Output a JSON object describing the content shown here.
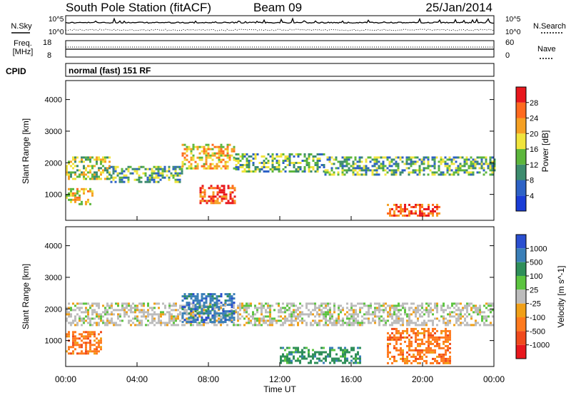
{
  "header": {
    "station": "South Pole Station (fitACF)",
    "beam": "Beam 09",
    "date": "25/Jan/2014"
  },
  "top_panels": {
    "nsky_label": "N.Sky",
    "nsearch_label": "N.Search",
    "noise_top_tick": "10^5",
    "noise_bottom_tick": "10^0",
    "noise_right_top_tick": "10^5",
    "noise_right_bottom_tick": "10^0",
    "freq_label": "Freq.",
    "freq_unit": "[MHz]",
    "freq_ticks": [
      "18",
      "8"
    ],
    "nave_label": "Nave",
    "nave_ticks": [
      "60",
      "0"
    ],
    "cpid_label": "CPID",
    "cpid_text": "normal (fast) 151 RF"
  },
  "chart_data": [
    {
      "type": "heatmap",
      "title": "",
      "ylabel": "Slant Range [km]",
      "xlabel": "",
      "ylim": [
        180,
        4600
      ],
      "yticks": [
        "1000",
        "2000",
        "3000",
        "4000"
      ],
      "colorbar_label": "Power [dB]",
      "colorbar_ticks": [
        "4",
        "8",
        "12",
        "16",
        "20",
        "24",
        "28"
      ],
      "colorbar_colors": [
        "#1a3dd6",
        "#2d62c6",
        "#3d8c6e",
        "#5cb63c",
        "#f0e43c",
        "#f5a023",
        "#ff6a1f",
        "#e8171d"
      ],
      "bands": [
        {
          "x_start": "00:00",
          "x_end": "02:30",
          "range_km": [
            1500,
            2200
          ],
          "level": 16
        },
        {
          "x_start": "02:30",
          "x_end": "06:30",
          "range_km": [
            1400,
            1900
          ],
          "level": 12
        },
        {
          "x_start": "06:30",
          "x_end": "09:30",
          "range_km": [
            1800,
            2600
          ],
          "level": 20
        },
        {
          "x_start": "09:30",
          "x_end": "14:30",
          "range_km": [
            1700,
            2300
          ],
          "level": 12
        },
        {
          "x_start": "14:30",
          "x_end": "24:00",
          "range_km": [
            1600,
            2200
          ],
          "level": 12
        },
        {
          "x_start": "00:00",
          "x_end": "01:30",
          "range_km": [
            700,
            1200
          ],
          "level": 20
        },
        {
          "x_start": "07:30",
          "x_end": "09:30",
          "range_km": [
            700,
            1300
          ],
          "level": 28
        },
        {
          "x_start": "18:00",
          "x_end": "21:00",
          "range_km": [
            300,
            700
          ],
          "level": 28
        }
      ]
    },
    {
      "type": "heatmap",
      "title": "",
      "ylabel": "Slant Range [km]",
      "xlabel": "Time UT",
      "ylim": [
        180,
        4600
      ],
      "yticks": [
        "1000",
        "2000",
        "3000",
        "4000"
      ],
      "xticks": [
        "00:00",
        "04:00",
        "08:00",
        "12:00",
        "16:00",
        "20:00",
        "00:00"
      ],
      "colorbar_label": "Velocity [m s^-1]",
      "colorbar_ticks": [
        "1000",
        "500",
        "100",
        "25",
        "-25",
        "-100",
        "-500",
        "-1000"
      ],
      "colorbar_colors": [
        "#2a4fd0",
        "#3a7fb8",
        "#2f8f5a",
        "#5cc440",
        "#bcbcbc",
        "#f0a018",
        "#ff7a1e",
        "#f04a1c",
        "#e8171d"
      ],
      "bands": [
        {
          "x_start": "00:00",
          "x_end": "24:00",
          "range_km": [
            1500,
            2200
          ],
          "level": 0
        },
        {
          "x_start": "00:00",
          "x_end": "02:00",
          "range_km": [
            600,
            1300
          ],
          "level": -500
        },
        {
          "x_start": "06:30",
          "x_end": "09:30",
          "range_km": [
            1600,
            2500
          ],
          "level": 500
        },
        {
          "x_start": "12:00",
          "x_end": "16:30",
          "range_km": [
            300,
            800
          ],
          "level": 100
        },
        {
          "x_start": "18:00",
          "x_end": "21:30",
          "range_km": [
            300,
            1400
          ],
          "level": -500
        }
      ]
    }
  ]
}
